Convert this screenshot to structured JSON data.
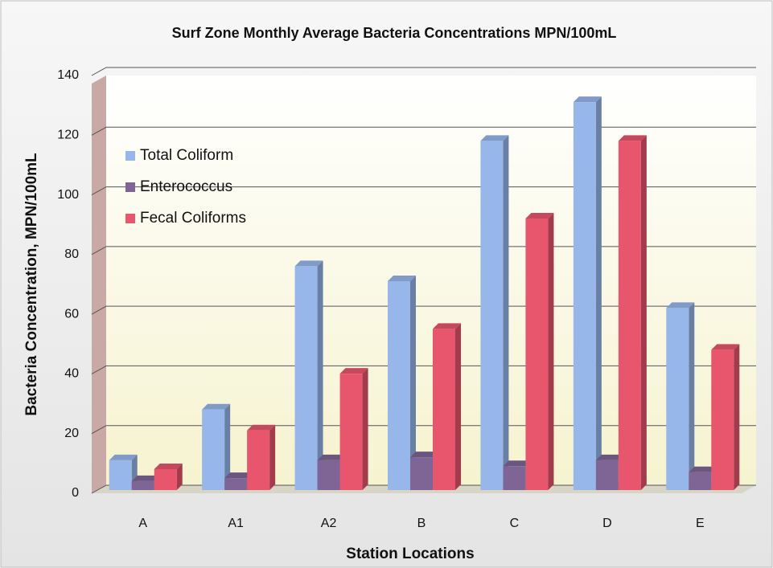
{
  "chart_data": {
    "type": "bar3d",
    "title": "Surf Zone Monthly Average Bacteria Concentrations MPN/100mL",
    "x_label": "Station Locations",
    "y_label": "Bacteria Concentration, MPN/100mL",
    "categories": [
      "A",
      "A1",
      "A2",
      "B",
      "C",
      "D",
      "E"
    ],
    "series": [
      {
        "name": "Total Coliform",
        "color": "#97b6ea",
        "values": [
          10,
          27,
          75,
          70,
          117,
          130,
          61
        ]
      },
      {
        "name": "Enterococcus",
        "color": "#7e6596",
        "values": [
          3,
          4,
          10,
          11,
          8,
          10,
          6
        ]
      },
      {
        "name": "Fecal Coliforms",
        "color": "#e8566d",
        "values": [
          7,
          20,
          39,
          54,
          91,
          117,
          47
        ]
      }
    ],
    "ylim": [
      0,
      140
    ],
    "yticks": [
      0,
      20,
      40,
      60,
      80,
      100,
      120,
      140
    ],
    "grid": true,
    "legend": "upper left"
  }
}
